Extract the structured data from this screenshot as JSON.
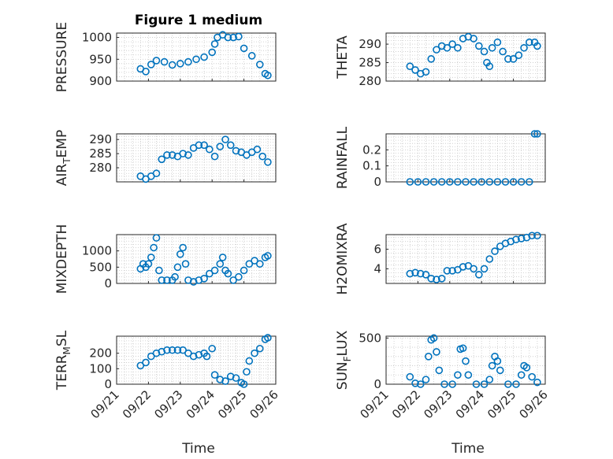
{
  "chart_data": {
    "figure_title": "Figure 1 medium",
    "xlabel": "Time",
    "x_tick_labels": [
      "09/21",
      "09/22",
      "09/23",
      "09/24",
      "09/25",
      "09/26"
    ],
    "x_range_days": [
      "09/21",
      "09/26"
    ],
    "marker": "open-circle",
    "marker_color": "#0072BD",
    "grid": "dotted",
    "panels": [
      {
        "id": "pressure",
        "type": "scatter",
        "ylabel": "PRESSURE",
        "ylim": [
          900,
          1010
        ],
        "yticks": [
          900,
          950,
          1000
        ],
        "points": [
          [
            "09/21 18:00",
            928
          ],
          [
            "09/21 22:00",
            922
          ],
          [
            "09/22 02:00",
            938
          ],
          [
            "09/22 06:00",
            947
          ],
          [
            "09/22 12:00",
            944
          ],
          [
            "09/22 18:00",
            937
          ],
          [
            "09/23 00:00",
            940
          ],
          [
            "09/23 06:00",
            944
          ],
          [
            "09/23 12:00",
            950
          ],
          [
            "09/23 18:00",
            955
          ],
          [
            "09/24 00:00",
            966
          ],
          [
            "09/24 02:00",
            985
          ],
          [
            "09/24 04:00",
            1000
          ],
          [
            "09/24 08:00",
            1006
          ],
          [
            "09/24 12:00",
            1000
          ],
          [
            "09/24 16:00",
            1000
          ],
          [
            "09/24 20:00",
            1002
          ],
          [
            "09/25 00:00",
            975
          ],
          [
            "09/25 06:00",
            958
          ],
          [
            "09/25 12:00",
            938
          ],
          [
            "09/25 16:00",
            917
          ],
          [
            "09/25 18:00",
            913
          ]
        ]
      },
      {
        "id": "theta",
        "type": "scatter",
        "ylabel": "THETA",
        "ylim": [
          280,
          293
        ],
        "yticks": [
          280,
          285,
          290
        ],
        "points": [
          [
            "09/21 18:00",
            284
          ],
          [
            "09/21 22:00",
            283
          ],
          [
            "09/22 02:00",
            282
          ],
          [
            "09/22 06:00",
            282.5
          ],
          [
            "09/22 10:00",
            286
          ],
          [
            "09/22 14:00",
            288.5
          ],
          [
            "09/22 18:00",
            289.5
          ],
          [
            "09/22 22:00",
            289
          ],
          [
            "09/23 02:00",
            290
          ],
          [
            "09/23 06:00",
            289
          ],
          [
            "09/23 10:00",
            291.5
          ],
          [
            "09/23 14:00",
            292
          ],
          [
            "09/23 18:00",
            291.5
          ],
          [
            "09/23 22:00",
            289.5
          ],
          [
            "09/24 02:00",
            288
          ],
          [
            "09/24 04:00",
            285
          ],
          [
            "09/24 06:00",
            284
          ],
          [
            "09/24 08:00",
            289
          ],
          [
            "09/24 12:00",
            290.5
          ],
          [
            "09/24 16:00",
            288
          ],
          [
            "09/24 20:00",
            286
          ],
          [
            "09/25 00:00",
            286
          ],
          [
            "09/25 04:00",
            287
          ],
          [
            "09/25 08:00",
            289
          ],
          [
            "09/25 12:00",
            290.5
          ],
          [
            "09/25 16:00",
            290.5
          ],
          [
            "09/25 18:00",
            289.5
          ]
        ]
      },
      {
        "id": "air_temp",
        "type": "scatter",
        "ylabel_main": "AIR",
        "ylabel_sub": "T",
        "ylabel_rest": "EMP",
        "ylim": [
          275,
          292
        ],
        "yticks": [
          280,
          285,
          290
        ],
        "points": [
          [
            "09/21 18:00",
            277
          ],
          [
            "09/21 22:00",
            276
          ],
          [
            "09/22 02:00",
            277
          ],
          [
            "09/22 06:00",
            278
          ],
          [
            "09/22 10:00",
            283
          ],
          [
            "09/22 14:00",
            284.5
          ],
          [
            "09/22 18:00",
            284.5
          ],
          [
            "09/22 22:00",
            284
          ],
          [
            "09/23 02:00",
            285
          ],
          [
            "09/23 06:00",
            284.5
          ],
          [
            "09/23 10:00",
            287
          ],
          [
            "09/23 14:00",
            288
          ],
          [
            "09/23 18:00",
            288
          ],
          [
            "09/23 22:00",
            286.5
          ],
          [
            "09/24 02:00",
            284
          ],
          [
            "09/24 06:00",
            287.5
          ],
          [
            "09/24 10:00",
            290
          ],
          [
            "09/24 14:00",
            288
          ],
          [
            "09/24 18:00",
            286
          ],
          [
            "09/24 22:00",
            285.5
          ],
          [
            "09/25 02:00",
            284.5
          ],
          [
            "09/25 06:00",
            285.5
          ],
          [
            "09/25 10:00",
            286.5
          ],
          [
            "09/25 14:00",
            284
          ],
          [
            "09/25 18:00",
            282
          ]
        ]
      },
      {
        "id": "rainfall",
        "type": "scatter",
        "ylabel": "RAINFALL",
        "ylim": [
          0,
          0.3
        ],
        "yticks": [
          0,
          0.1,
          0.2
        ],
        "points": [
          [
            "09/21 18:00",
            0
          ],
          [
            "09/22 00:00",
            0
          ],
          [
            "09/22 06:00",
            0
          ],
          [
            "09/22 12:00",
            0
          ],
          [
            "09/22 18:00",
            0
          ],
          [
            "09/23 00:00",
            0
          ],
          [
            "09/23 06:00",
            0
          ],
          [
            "09/23 12:00",
            0
          ],
          [
            "09/23 18:00",
            0
          ],
          [
            "09/24 00:00",
            0
          ],
          [
            "09/24 06:00",
            0
          ],
          [
            "09/24 12:00",
            0
          ],
          [
            "09/24 18:00",
            0
          ],
          [
            "09/25 00:00",
            0
          ],
          [
            "09/25 06:00",
            0
          ],
          [
            "09/25 12:00",
            0
          ],
          [
            "09/25 16:00",
            0.3
          ],
          [
            "09/25 18:00",
            0.3
          ]
        ]
      },
      {
        "id": "mixdepth",
        "type": "scatter",
        "ylabel": "MIXDEPTH",
        "ylim": [
          0,
          1500
        ],
        "yticks": [
          0,
          500,
          1000
        ],
        "points": [
          [
            "09/21 18:00",
            450
          ],
          [
            "09/21 20:00",
            600
          ],
          [
            "09/21 22:00",
            500
          ],
          [
            "09/22 00:00",
            600
          ],
          [
            "09/22 02:00",
            800
          ],
          [
            "09/22 04:00",
            1100
          ],
          [
            "09/22 06:00",
            1400
          ],
          [
            "09/22 08:00",
            400
          ],
          [
            "09/22 10:00",
            100
          ],
          [
            "09/22 14:00",
            100
          ],
          [
            "09/22 18:00",
            100
          ],
          [
            "09/22 20:00",
            200
          ],
          [
            "09/22 22:00",
            500
          ],
          [
            "09/23 00:00",
            900
          ],
          [
            "09/23 02:00",
            1100
          ],
          [
            "09/23 04:00",
            600
          ],
          [
            "09/23 06:00",
            100
          ],
          [
            "09/23 10:00",
            50
          ],
          [
            "09/23 14:00",
            100
          ],
          [
            "09/23 18:00",
            150
          ],
          [
            "09/23 22:00",
            300
          ],
          [
            "09/24 02:00",
            400
          ],
          [
            "09/24 06:00",
            600
          ],
          [
            "09/24 08:00",
            800
          ],
          [
            "09/24 10:00",
            400
          ],
          [
            "09/24 12:00",
            300
          ],
          [
            "09/24 16:00",
            100
          ],
          [
            "09/24 20:00",
            200
          ],
          [
            "09/25 00:00",
            400
          ],
          [
            "09/25 04:00",
            600
          ],
          [
            "09/25 08:00",
            700
          ],
          [
            "09/25 12:00",
            600
          ],
          [
            "09/25 16:00",
            800
          ],
          [
            "09/25 18:00",
            850
          ]
        ]
      },
      {
        "id": "h2omixra",
        "type": "scatter",
        "ylabel": "H2OMIXRA",
        "ylim": [
          2.5,
          7.5
        ],
        "yticks": [
          4,
          6
        ],
        "points": [
          [
            "09/21 18:00",
            3.5
          ],
          [
            "09/21 22:00",
            3.6
          ],
          [
            "09/22 02:00",
            3.5
          ],
          [
            "09/22 06:00",
            3.4
          ],
          [
            "09/22 10:00",
            3.0
          ],
          [
            "09/22 14:00",
            2.9
          ],
          [
            "09/22 18:00",
            3.0
          ],
          [
            "09/22 22:00",
            3.8
          ],
          [
            "09/23 02:00",
            3.8
          ],
          [
            "09/23 06:00",
            3.9
          ],
          [
            "09/23 10:00",
            4.2
          ],
          [
            "09/23 14:00",
            4.3
          ],
          [
            "09/23 18:00",
            4.0
          ],
          [
            "09/23 22:00",
            3.4
          ],
          [
            "09/24 02:00",
            4.0
          ],
          [
            "09/24 06:00",
            5.0
          ],
          [
            "09/24 10:00",
            5.8
          ],
          [
            "09/24 14:00",
            6.3
          ],
          [
            "09/24 18:00",
            6.6
          ],
          [
            "09/24 22:00",
            6.8
          ],
          [
            "09/25 02:00",
            7.0
          ],
          [
            "09/25 06:00",
            7.1
          ],
          [
            "09/25 10:00",
            7.2
          ],
          [
            "09/25 14:00",
            7.4
          ],
          [
            "09/25 18:00",
            7.4
          ]
        ]
      },
      {
        "id": "terr_msl",
        "type": "scatter",
        "ylabel_main": "TERR",
        "ylabel_sub": "M",
        "ylabel_rest": "SL",
        "ylim": [
          0,
          310
        ],
        "yticks": [
          0,
          100,
          200
        ],
        "points": [
          [
            "09/21 18:00",
            120
          ],
          [
            "09/21 22:00",
            140
          ],
          [
            "09/22 02:00",
            180
          ],
          [
            "09/22 06:00",
            200
          ],
          [
            "09/22 10:00",
            210
          ],
          [
            "09/22 14:00",
            220
          ],
          [
            "09/22 18:00",
            220
          ],
          [
            "09/22 22:00",
            220
          ],
          [
            "09/23 02:00",
            220
          ],
          [
            "09/23 06:00",
            200
          ],
          [
            "09/23 10:00",
            180
          ],
          [
            "09/23 14:00",
            190
          ],
          [
            "09/23 18:00",
            200
          ],
          [
            "09/23 20:00",
            180
          ],
          [
            "09/24 00:00",
            230
          ],
          [
            "09/24 02:00",
            60
          ],
          [
            "09/24 06:00",
            30
          ],
          [
            "09/24 10:00",
            20
          ],
          [
            "09/24 14:00",
            50
          ],
          [
            "09/24 18:00",
            40
          ],
          [
            "09/24 22:00",
            10
          ],
          [
            "09/25 00:00",
            0
          ],
          [
            "09/25 02:00",
            80
          ],
          [
            "09/25 04:00",
            150
          ],
          [
            "09/25 08:00",
            200
          ],
          [
            "09/25 12:00",
            230
          ],
          [
            "09/25 16:00",
            290
          ],
          [
            "09/25 18:00",
            300
          ]
        ]
      },
      {
        "id": "sun_flux",
        "type": "scatter",
        "ylabel_main": "SUN",
        "ylabel_sub": "F",
        "ylabel_rest": "LUX",
        "ylim": [
          0,
          520
        ],
        "yticks": [
          0,
          500
        ],
        "points": [
          [
            "09/21 18:00",
            80
          ],
          [
            "09/21 22:00",
            10
          ],
          [
            "09/22 02:00",
            0
          ],
          [
            "09/22 06:00",
            50
          ],
          [
            "09/22 08:00",
            300
          ],
          [
            "09/22 10:00",
            480
          ],
          [
            "09/22 12:00",
            500
          ],
          [
            "09/22 14:00",
            350
          ],
          [
            "09/22 16:00",
            150
          ],
          [
            "09/22 20:00",
            0
          ],
          [
            "09/23 02:00",
            0
          ],
          [
            "09/23 06:00",
            100
          ],
          [
            "09/23 08:00",
            380
          ],
          [
            "09/23 10:00",
            390
          ],
          [
            "09/23 12:00",
            250
          ],
          [
            "09/23 14:00",
            100
          ],
          [
            "09/23 20:00",
            0
          ],
          [
            "09/24 02:00",
            0
          ],
          [
            "09/24 06:00",
            50
          ],
          [
            "09/24 08:00",
            200
          ],
          [
            "09/24 10:00",
            300
          ],
          [
            "09/24 12:00",
            250
          ],
          [
            "09/24 14:00",
            150
          ],
          [
            "09/24 20:00",
            0
          ],
          [
            "09/25 02:00",
            0
          ],
          [
            "09/25 06:00",
            100
          ],
          [
            "09/25 08:00",
            200
          ],
          [
            "09/25 10:00",
            180
          ],
          [
            "09/25 14:00",
            80
          ],
          [
            "09/25 18:00",
            20
          ]
        ]
      }
    ]
  }
}
